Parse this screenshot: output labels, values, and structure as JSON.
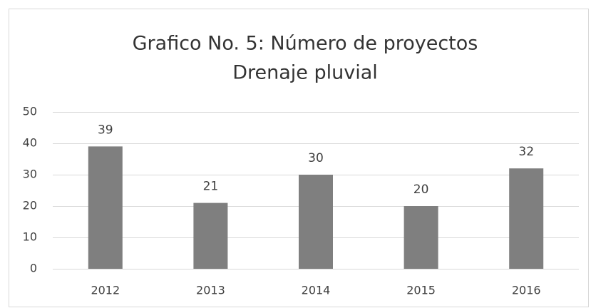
{
  "chart_data": {
    "type": "bar",
    "title": [
      "Grafico No. 5: Número de proyectos",
      "Drenaje pluvial"
    ],
    "categories": [
      "2012",
      "2013",
      "2014",
      "2015",
      "2016"
    ],
    "values": [
      39,
      21,
      30,
      20,
      32
    ],
    "color": "#7f7f7f",
    "ylim": [
      0,
      50
    ],
    "yticks": [
      0,
      10,
      20,
      30,
      40,
      50
    ],
    "grid": true
  }
}
